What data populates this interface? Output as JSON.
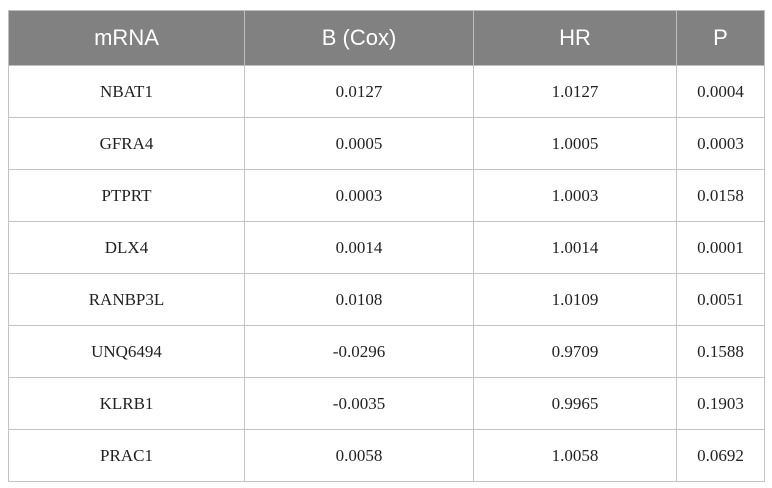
{
  "table": {
    "columns": [
      "mRNA",
      "B (Cox)",
      "HR",
      "P"
    ],
    "rows": [
      [
        "NBAT1",
        "0.0127",
        "1.0127",
        "0.0004"
      ],
      [
        "GFRA4",
        "0.0005",
        "1.0005",
        "0.0003"
      ],
      [
        "PTPRT",
        "0.0003",
        "1.0003",
        "0.0158"
      ],
      [
        "DLX4",
        "0.0014",
        "1.0014",
        "0.0001"
      ],
      [
        "RANBP3L",
        "0.0108",
        "1.0109",
        "0.0051"
      ],
      [
        "UNQ6494",
        "-0.0296",
        "0.9709",
        "0.1588"
      ],
      [
        "KLRB1",
        "-0.0035",
        "0.9965",
        "0.1903"
      ],
      [
        "PRAC1",
        "0.0058",
        "1.0058",
        "0.0692"
      ]
    ]
  }
}
